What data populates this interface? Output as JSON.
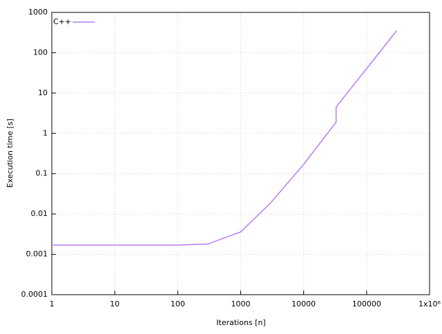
{
  "chart_data": {
    "type": "line",
    "x_label": "Iterations [n]",
    "y_label": "Execution time [s]",
    "x_log": true,
    "y_log": true,
    "grid": true,
    "legend": "top-left",
    "xlim": [
      1,
      1000000
    ],
    "ylim": [
      0.0001,
      1000
    ],
    "xticks": [
      1,
      10,
      100,
      1000,
      10000,
      100000,
      {
        "value": 1000000,
        "label": "1x10⁶"
      }
    ],
    "yticks": [
      0.0001,
      0.001,
      0.01,
      0.1,
      1,
      10,
      100,
      1000
    ],
    "x": [
      1,
      10,
      100,
      300,
      1000,
      3000,
      10000,
      32768,
      32768,
      300000
    ],
    "series": [
      {
        "name": "C++",
        "color": "#b77cf5",
        "values": [
          0.0017,
          0.0017,
          0.0017,
          0.0018,
          0.0036,
          0.019,
          0.17,
          1.9,
          4.5,
          350
        ]
      }
    ]
  }
}
